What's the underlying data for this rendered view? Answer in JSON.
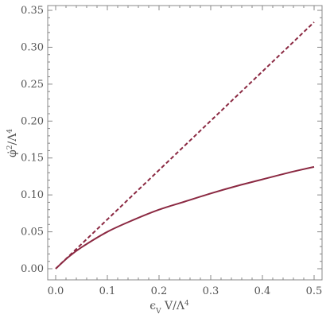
{
  "chart_data": {
    "type": "line",
    "xlabel": "ϵ_V V/Λ^4",
    "ylabel": "φ̇^2/Λ^4",
    "xlim": [
      0,
      0.5
    ],
    "ylim": [
      0,
      0.35
    ],
    "x_ticks": [
      "0.0",
      "0.1",
      "0.2",
      "0.3",
      "0.4",
      "0.5"
    ],
    "y_ticks": [
      "0.00",
      "0.05",
      "0.10",
      "0.15",
      "0.20",
      "0.25",
      "0.30",
      "0.35"
    ],
    "grid": false,
    "series": [
      {
        "style": "solid",
        "color": "#8b2942",
        "x": [
          0,
          0.025,
          0.05,
          0.1,
          0.15,
          0.2,
          0.25,
          0.3,
          0.35,
          0.4,
          0.45,
          0.5
        ],
        "y": [
          0,
          0.016,
          0.029,
          0.05,
          0.066,
          0.08,
          0.091,
          0.102,
          0.112,
          0.121,
          0.13,
          0.138
        ]
      },
      {
        "style": "dashed",
        "color": "#8b2942",
        "x": [
          0,
          0.5
        ],
        "y": [
          0,
          0.334
        ]
      }
    ]
  }
}
